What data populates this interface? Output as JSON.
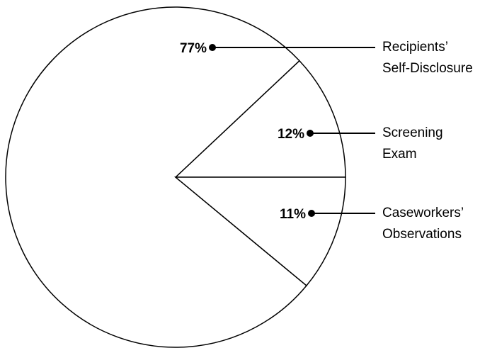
{
  "chart_data": {
    "type": "pie",
    "categories": [
      "Screening Exam",
      "Recipients’ Self-Disclosure",
      "Caseworkers’ Observations"
    ],
    "values": [
      12,
      77,
      11
    ],
    "value_labels": [
      "12%",
      "77%",
      "11%"
    ],
    "color": "#ffffff"
  }
}
